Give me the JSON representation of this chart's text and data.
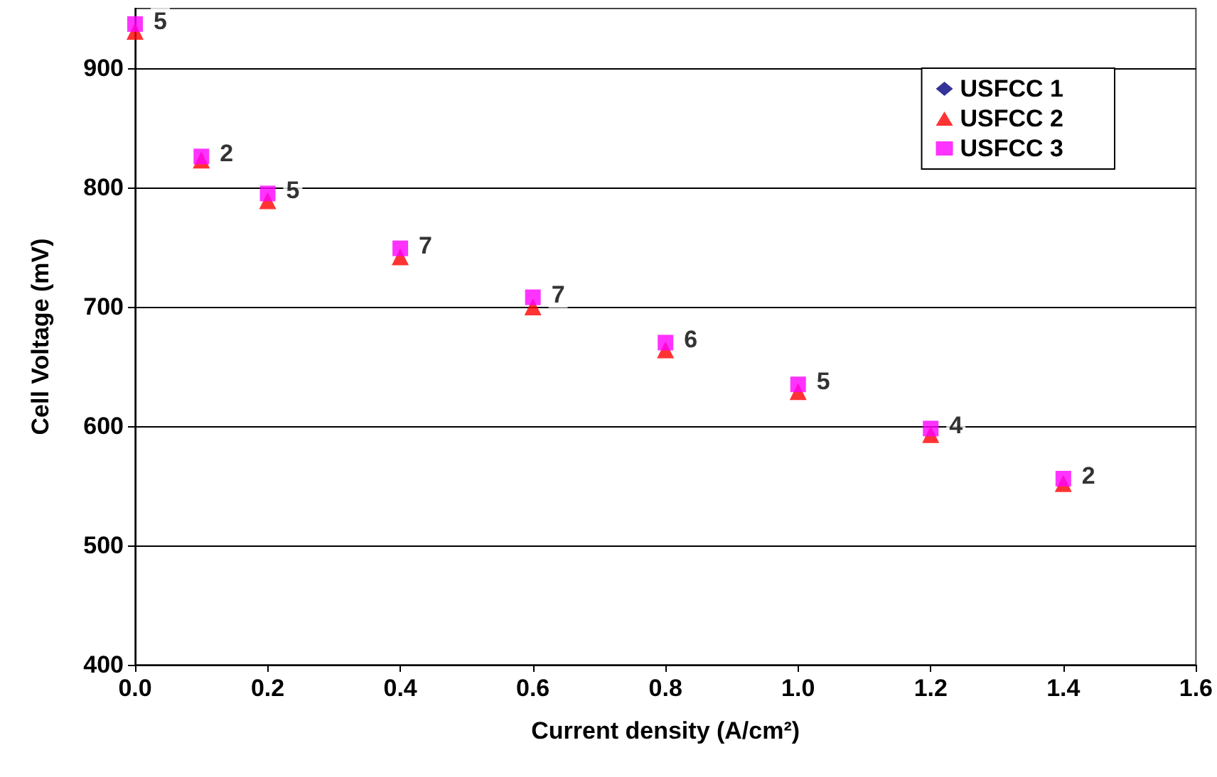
{
  "chart_data": {
    "type": "scatter",
    "xlabel": "Current density (A/cm²)",
    "ylabel": "Cell Voltage (mV)",
    "x": [
      0,
      0.1,
      0.2,
      0.4,
      0.6,
      0.8,
      1.0,
      1.2,
      1.4
    ],
    "series": [
      {
        "name": "USFCC 1",
        "color": "#000080",
        "marker": "diamond",
        "values": [
          null,
          null,
          null,
          null,
          null,
          null,
          null,
          null,
          null
        ]
      },
      {
        "name": "USFCC 2",
        "color": "#ff0000",
        "marker": "triangle",
        "values": [
          931,
          823,
          789,
          742,
          700,
          664,
          629,
          593,
          552
        ]
      },
      {
        "name": "USFCC 3",
        "color": "#ff00ff",
        "marker": "square",
        "values": [
          937,
          826,
          795,
          749,
          708,
          670,
          635,
          598,
          556
        ]
      }
    ],
    "annotations": [
      {
        "text": "5",
        "x": 0,
        "y": 937
      },
      {
        "text": "2",
        "x": 0.1,
        "y": 826
      },
      {
        "text": "5",
        "x": 0.2,
        "y": 795
      },
      {
        "text": "7",
        "x": 0.4,
        "y": 749
      },
      {
        "text": "7",
        "x": 0.6,
        "y": 708
      },
      {
        "text": "6",
        "x": 0.8,
        "y": 670
      },
      {
        "text": "5",
        "x": 1.0,
        "y": 635
      },
      {
        "text": "4",
        "x": 1.2,
        "y": 598
      },
      {
        "text": "2",
        "x": 1.4,
        "y": 556
      }
    ],
    "xlim": [
      0,
      1.6
    ],
    "xticks": [
      {
        "value": 0,
        "label": "0.0"
      },
      {
        "value": 0.2,
        "label": "0.2"
      },
      {
        "value": 0.4,
        "label": "0.4"
      },
      {
        "value": 0.6,
        "label": "0.6"
      },
      {
        "value": 0.8,
        "label": "0.8"
      },
      {
        "value": 1.0,
        "label": "1.0"
      },
      {
        "value": 1.2,
        "label": "1.2"
      },
      {
        "value": 1.4,
        "label": "1.4"
      },
      {
        "value": 1.6,
        "label": "1.6"
      }
    ],
    "ylim": [
      400,
      950
    ],
    "yticks": [
      400,
      500,
      600,
      700,
      800,
      900
    ],
    "grid": "y",
    "legend": "top right"
  }
}
